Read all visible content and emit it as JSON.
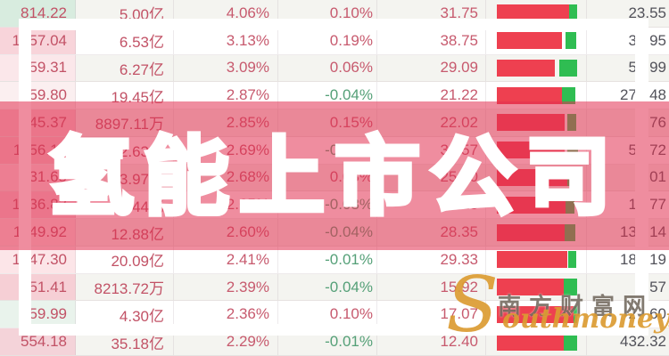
{
  "overlay": {
    "title": "氢能上市公司"
  },
  "watermark": {
    "site_cn": "南方财富网",
    "site_en": "Southmoney.com"
  },
  "colors": {
    "bar_red": "#ee4050",
    "bar_green": "#2fbd52",
    "band_overlay": "rgba(226,48,80,0.55)",
    "positive_text": "#c75a6e",
    "negative_text": "#55a078",
    "value2_text": "#52525a",
    "row1_price_bg": "#d8ecdf"
  },
  "table": {
    "columns": [
      "price",
      "turnover",
      "pct1",
      "pct2",
      "value1",
      "trend_bar",
      "value2"
    ]
  },
  "rows": [
    {
      "price": "814.22",
      "price_bg": "#d8ecdf",
      "turnover": "5.00亿",
      "pct1": "4.06%",
      "pct2": "0.10%",
      "val1": "31.75",
      "bar": {
        "red": 81,
        "gap": 0,
        "green": 9
      },
      "val2": "23.55"
    },
    {
      "price": "1257.04",
      "price_bg": "#f8d4da",
      "turnover": "6.53亿",
      "pct1": "3.13%",
      "pct2": "0.19%",
      "val1": "38.75",
      "bar": {
        "red": 73,
        "gap": 4,
        "green": 12
      },
      "val2": "35.95"
    },
    {
      "price": "959.31",
      "price_bg": "#fbe7ea",
      "turnover": "6.27亿",
      "pct1": "3.09%",
      "pct2": "0.06%",
      "val1": "29.09",
      "bar": {
        "red": 65,
        "gap": 5,
        "green": 20
      },
      "val2": "57.99"
    },
    {
      "price": "759.80",
      "price_bg": "#fbeff0",
      "turnover": "19.45亿",
      "pct1": "2.87%",
      "pct2": "-0.04%",
      "val1": "21.22",
      "bar": {
        "red": 73,
        "gap": 0,
        "green": 15
      },
      "val2": "278.48"
    },
    {
      "price": "745.37",
      "price_bg": "#f6c9d0",
      "turnover": "8897.11万",
      "pct1": "2.85%",
      "pct2": "0.15%",
      "val1": "22.02",
      "bar": {
        "red": 76,
        "gap": 3,
        "green": 10
      },
      "val2": "5.76"
    },
    {
      "price": "1156.13",
      "price_bg": "#f5c5cc",
      "turnover": "2.63亿",
      "pct1": "2.69%",
      "pct2": "-0.02%",
      "val1": "32.57",
      "bar": {
        "red": 76,
        "gap": 3,
        "green": 12
      },
      "val2": "54.72"
    },
    {
      "price": "431.65",
      "price_bg": "#fadee2",
      "turnover": "3.97亿",
      "pct1": "2.68%",
      "pct2": "0.03%",
      "val1": "25.40",
      "bar": {
        "red": 79,
        "gap": 0,
        "green": 8
      },
      "val2": "9.01"
    },
    {
      "price": "1236.83",
      "price_bg": "#f6cbd2",
      "turnover": "5.44亿",
      "pct1": "2.65%",
      "pct2": "-0.08%",
      "val1": "30.18",
      "bar": {
        "red": 77,
        "gap": 0,
        "green": 10
      },
      "val2": "17.77"
    },
    {
      "price": "1149.92",
      "price_bg": "#fadfe3",
      "turnover": "12.88亿",
      "pct1": "2.60%",
      "pct2": "-0.04%",
      "val1": "28.35",
      "bar": {
        "red": 76,
        "gap": 0,
        "green": 12
      },
      "val2": "135.14"
    },
    {
      "price": "1247.30",
      "price_bg": "#fce5e8",
      "turnover": "20.09亿",
      "pct1": "2.41%",
      "pct2": "-0.01%",
      "val1": "29.33",
      "bar": {
        "red": 79,
        "gap": 1,
        "green": 9
      },
      "val2": "182.19"
    },
    {
      "price": "651.41",
      "price_bg": "#f6cfd5",
      "turnover": "8213.72万",
      "pct1": "2.39%",
      "pct2": "-0.04%",
      "val1": "15.92",
      "bar": {
        "red": 75,
        "gap": 0,
        "green": 15
      },
      "val2": "6.57"
    },
    {
      "price": "759.99",
      "price_bg": "#e9f3ec",
      "turnover": "4.30亿",
      "pct1": "2.36%",
      "pct2": "0.10%",
      "val1": "17.07",
      "bar": {
        "red": 86,
        "gap": 0,
        "green": 4
      },
      "val2": "24.60"
    },
    {
      "price": "554.18",
      "price_bg": "#f4d3d9",
      "turnover": "35.18亿",
      "pct1": "2.29%",
      "pct2": "-0.01%",
      "val1": "12.40",
      "bar": {
        "red": 75,
        "gap": 0,
        "green": 15
      },
      "val2": "432.32"
    }
  ]
}
